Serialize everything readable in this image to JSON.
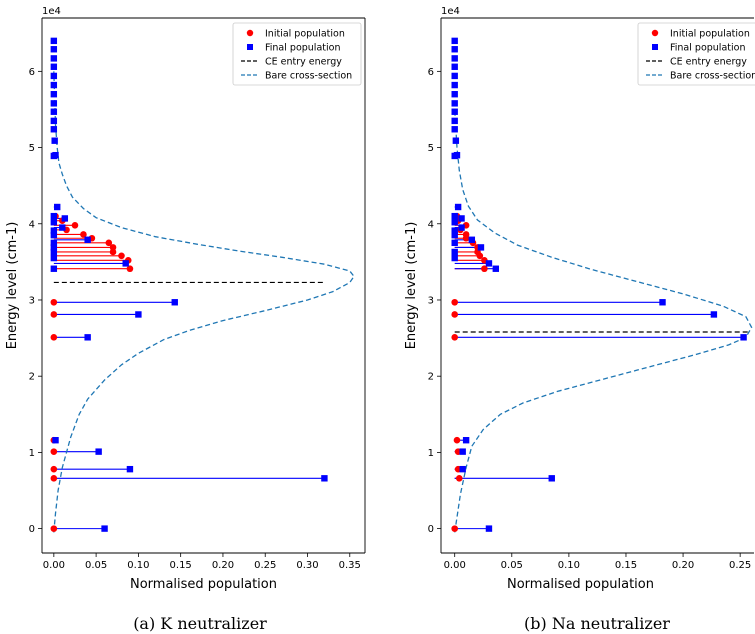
{
  "chart_data": [
    {
      "type": "line",
      "caption": "(a) K neutralizer",
      "xlabel": "Normalised population",
      "ylabel": "Energy level (cm-1)",
      "y_offset_label": "1e4",
      "xlim": [
        -0.014,
        0.368
      ],
      "ylim": [
        -3200,
        67000
      ],
      "xticks": [
        0.0,
        0.05,
        0.1,
        0.15,
        0.2,
        0.25,
        0.3,
        0.35
      ],
      "xtick_labels": [
        "0.00",
        "0.05",
        "0.10",
        "0.15",
        "0.20",
        "0.25",
        "0.30",
        "0.35"
      ],
      "yticks": [
        0,
        10000,
        20000,
        30000,
        40000,
        50000,
        60000
      ],
      "ytick_labels": [
        "0",
        "1",
        "2",
        "3",
        "4",
        "5",
        "6"
      ],
      "legend": {
        "position": "top-right",
        "entries": [
          "Initial population",
          "Final population",
          "CE entry energy",
          "Bare cross-section"
        ]
      },
      "colors": {
        "initial": "#ff0000",
        "final": "#0000ff",
        "ce": "#000000",
        "bare": "#1f77b4"
      },
      "ce_entry_energy": 32300,
      "ce_x_range": [
        0.0,
        0.32
      ],
      "initial_population": [
        {
          "e": 0,
          "p": 0.0
        },
        {
          "e": 6600,
          "p": 0.0
        },
        {
          "e": 7800,
          "p": 0.0
        },
        {
          "e": 10100,
          "p": 0.0
        },
        {
          "e": 11600,
          "p": 0.0
        },
        {
          "e": 25100,
          "p": 0.0
        },
        {
          "e": 28100,
          "p": 0.0
        },
        {
          "e": 29700,
          "p": 0.0
        },
        {
          "e": 34100,
          "p": 0.09
        },
        {
          "e": 35200,
          "p": 0.088
        },
        {
          "e": 35800,
          "p": 0.08
        },
        {
          "e": 36300,
          "p": 0.07
        },
        {
          "e": 36900,
          "p": 0.07
        },
        {
          "e": 37500,
          "p": 0.065
        },
        {
          "e": 38100,
          "p": 0.045
        },
        {
          "e": 38600,
          "p": 0.035
        },
        {
          "e": 39200,
          "p": 0.015
        },
        {
          "e": 39800,
          "p": 0.025
        },
        {
          "e": 40400,
          "p": 0.01
        },
        {
          "e": 41000,
          "p": 0.002
        }
      ],
      "final_population": [
        {
          "e": 0,
          "p": 0.06
        },
        {
          "e": 6600,
          "p": 0.32
        },
        {
          "e": 7800,
          "p": 0.09
        },
        {
          "e": 10100,
          "p": 0.053
        },
        {
          "e": 11600,
          "p": 0.002
        },
        {
          "e": 25100,
          "p": 0.04
        },
        {
          "e": 28100,
          "p": 0.1
        },
        {
          "e": 29700,
          "p": 0.143
        },
        {
          "e": 34100,
          "p": 0.0
        },
        {
          "e": 34800,
          "p": 0.085
        },
        {
          "e": 35500,
          "p": 0.0
        },
        {
          "e": 36300,
          "p": 0.0
        },
        {
          "e": 36900,
          "p": 0.0
        },
        {
          "e": 37500,
          "p": 0.0
        },
        {
          "e": 37900,
          "p": 0.04
        },
        {
          "e": 38500,
          "p": 0.0
        },
        {
          "e": 39100,
          "p": 0.0
        },
        {
          "e": 39500,
          "p": 0.01
        },
        {
          "e": 40200,
          "p": 0.0
        },
        {
          "e": 40700,
          "p": 0.013
        },
        {
          "e": 41000,
          "p": 0.0
        },
        {
          "e": 42200,
          "p": 0.004
        },
        {
          "e": 48900,
          "p": 0.0
        },
        {
          "e": 49000,
          "p": 0.002
        },
        {
          "e": 50900,
          "p": 0.001
        },
        {
          "e": 52400,
          "p": 0.0
        },
        {
          "e": 53500,
          "p": 0.0
        },
        {
          "e": 54700,
          "p": 0.0
        },
        {
          "e": 55800,
          "p": 0.0
        },
        {
          "e": 57000,
          "p": 0.0
        },
        {
          "e": 58200,
          "p": 0.0
        },
        {
          "e": 59400,
          "p": 0.0
        },
        {
          "e": 60600,
          "p": 0.0
        },
        {
          "e": 61700,
          "p": 0.0
        },
        {
          "e": 62900,
          "p": 0.0
        },
        {
          "e": 64000,
          "p": 0.0
        }
      ],
      "bare_cross_section": {
        "x": [
          0.0,
          0.002,
          0.005,
          0.01,
          0.02,
          0.03,
          0.04,
          0.06,
          0.08,
          0.1,
          0.13,
          0.16,
          0.2,
          0.25,
          0.3,
          0.33,
          0.35,
          0.355,
          0.35,
          0.32,
          0.27,
          0.22,
          0.17,
          0.12,
          0.08,
          0.05,
          0.035,
          0.022,
          0.015,
          0.01,
          0.006,
          0.004,
          0.002,
          0.0
        ],
        "e": [
          -500,
          2000,
          5000,
          8000,
          12000,
          15000,
          17000,
          19500,
          21500,
          23000,
          24800,
          26000,
          27300,
          28600,
          30000,
          31100,
          32300,
          33100,
          33800,
          34700,
          35600,
          36400,
          37300,
          38300,
          39500,
          40800,
          42000,
          43500,
          45000,
          46500,
          48000,
          50000,
          53000,
          60000
        ]
      }
    },
    {
      "type": "line",
      "caption": "(b) Na neutralizer",
      "xlabel": "Normalised population",
      "ylabel": "Energy level (cm-1)",
      "y_offset_label": "1e4",
      "xlim": [
        -0.012,
        0.263
      ],
      "ylim": [
        -3200,
        67000
      ],
      "xticks": [
        0.0,
        0.05,
        0.1,
        0.15,
        0.2,
        0.25
      ],
      "xtick_labels": [
        "0.00",
        "0.05",
        "0.10",
        "0.15",
        "0.20",
        "0.25"
      ],
      "yticks": [
        0,
        10000,
        20000,
        30000,
        40000,
        50000,
        60000
      ],
      "ytick_labels": [
        "0",
        "1",
        "2",
        "3",
        "4",
        "5",
        "6"
      ],
      "legend": {
        "position": "top-right",
        "entries": [
          "Initial population",
          "Final population",
          "CE entry energy",
          "Bare cross-section"
        ]
      },
      "colors": {
        "initial": "#ff0000",
        "final": "#0000ff",
        "ce": "#000000",
        "bare": "#1f77b4"
      },
      "ce_entry_energy": 25800,
      "ce_x_range": [
        0.0,
        0.258
      ],
      "initial_population": [
        {
          "e": 0,
          "p": 0.0
        },
        {
          "e": 6600,
          "p": 0.004
        },
        {
          "e": 7800,
          "p": 0.003
        },
        {
          "e": 10100,
          "p": 0.003
        },
        {
          "e": 11600,
          "p": 0.002
        },
        {
          "e": 25100,
          "p": 0.0
        },
        {
          "e": 28100,
          "p": 0.0
        },
        {
          "e": 29700,
          "p": 0.0
        },
        {
          "e": 34100,
          "p": 0.026
        },
        {
          "e": 35200,
          "p": 0.026
        },
        {
          "e": 35800,
          "p": 0.022
        },
        {
          "e": 36300,
          "p": 0.02
        },
        {
          "e": 36900,
          "p": 0.02
        },
        {
          "e": 37500,
          "p": 0.016
        },
        {
          "e": 38100,
          "p": 0.01
        },
        {
          "e": 38600,
          "p": 0.01
        },
        {
          "e": 39200,
          "p": 0.005
        },
        {
          "e": 39800,
          "p": 0.01
        },
        {
          "e": 40400,
          "p": 0.003
        },
        {
          "e": 41000,
          "p": 0.002
        }
      ],
      "final_population": [
        {
          "e": 0,
          "p": 0.03
        },
        {
          "e": 6600,
          "p": 0.085
        },
        {
          "e": 7800,
          "p": 0.007
        },
        {
          "e": 10100,
          "p": 0.007
        },
        {
          "e": 11600,
          "p": 0.01
        },
        {
          "e": 25100,
          "p": 0.253
        },
        {
          "e": 28100,
          "p": 0.227
        },
        {
          "e": 29700,
          "p": 0.182
        },
        {
          "e": 34100,
          "p": 0.036
        },
        {
          "e": 34800,
          "p": 0.03
        },
        {
          "e": 35500,
          "p": 0.0
        },
        {
          "e": 36300,
          "p": 0.0
        },
        {
          "e": 36900,
          "p": 0.023
        },
        {
          "e": 37500,
          "p": 0.0
        },
        {
          "e": 37900,
          "p": 0.015
        },
        {
          "e": 38500,
          "p": 0.0
        },
        {
          "e": 39100,
          "p": 0.0
        },
        {
          "e": 39500,
          "p": 0.006
        },
        {
          "e": 40200,
          "p": 0.0
        },
        {
          "e": 40700,
          "p": 0.006
        },
        {
          "e": 41000,
          "p": 0.0
        },
        {
          "e": 42200,
          "p": 0.003
        },
        {
          "e": 48900,
          "p": 0.0
        },
        {
          "e": 49000,
          "p": 0.002
        },
        {
          "e": 50900,
          "p": 0.001
        },
        {
          "e": 52400,
          "p": 0.0
        },
        {
          "e": 53500,
          "p": 0.0
        },
        {
          "e": 54700,
          "p": 0.0
        },
        {
          "e": 55800,
          "p": 0.0
        },
        {
          "e": 57000,
          "p": 0.0
        },
        {
          "e": 58200,
          "p": 0.0
        },
        {
          "e": 59400,
          "p": 0.0
        },
        {
          "e": 60600,
          "p": 0.0
        },
        {
          "e": 61700,
          "p": 0.0
        },
        {
          "e": 62900,
          "p": 0.0
        },
        {
          "e": 64000,
          "p": 0.0
        }
      ],
      "bare_cross_section": {
        "x": [
          0.0,
          0.002,
          0.005,
          0.01,
          0.015,
          0.025,
          0.04,
          0.06,
          0.09,
          0.13,
          0.17,
          0.21,
          0.24,
          0.255,
          0.26,
          0.255,
          0.235,
          0.2,
          0.16,
          0.12,
          0.085,
          0.055,
          0.035,
          0.02,
          0.012,
          0.007,
          0.004,
          0.002,
          0.0
        ],
        "e": [
          -500,
          1500,
          4500,
          8000,
          10800,
          13000,
          15000,
          16500,
          18000,
          19600,
          21200,
          22800,
          24100,
          25100,
          26400,
          27800,
          29200,
          30800,
          32400,
          34000,
          35600,
          37200,
          38800,
          40500,
          42300,
          44500,
          47000,
          50000,
          55000
        ]
      }
    }
  ]
}
